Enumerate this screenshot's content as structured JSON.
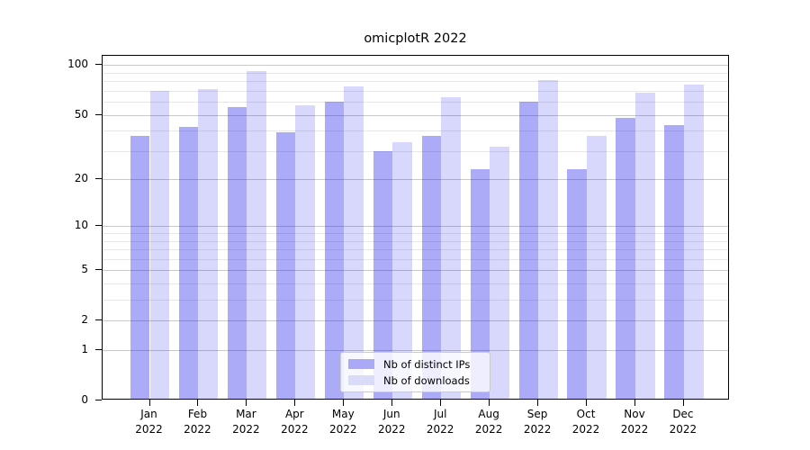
{
  "chart_data": {
    "type": "bar",
    "title": "omicplotR 2022",
    "categories": [
      "Jan",
      "Feb",
      "Mar",
      "Apr",
      "May",
      "Jun",
      "Jul",
      "Aug",
      "Sep",
      "Oct",
      "Nov",
      "Dec"
    ],
    "category_year": "2022",
    "series": [
      {
        "name": "Nb of distinct IPs",
        "swatch_color": "#a9a9f7",
        "fill_color": "rgba(13,13,235,0.35)",
        "values": [
          37,
          42,
          56,
          39,
          60,
          30,
          37,
          23,
          60,
          23,
          48,
          43
        ]
      },
      {
        "name": "Nb of downloads",
        "swatch_color": "#dadaf9",
        "fill_color": "rgba(13,13,235,0.16)",
        "values": [
          70,
          72,
          92,
          57,
          74,
          34,
          64,
          32,
          81,
          37,
          68,
          76
        ]
      }
    ],
    "yscale": "log1p",
    "ylim": [
      0,
      113
    ],
    "yticks": [
      0,
      1,
      2,
      5,
      10,
      20,
      50,
      100
    ],
    "minor_gridlines": [
      3,
      4,
      6,
      7,
      8,
      9,
      30,
      40,
      60,
      70,
      80,
      90
    ],
    "grid": "on",
    "legend_position": "bottom-center",
    "colors": {
      "major_grid": "#c9c9c9",
      "minor_grid": "#e7e7e7",
      "axis": "#000000"
    }
  }
}
